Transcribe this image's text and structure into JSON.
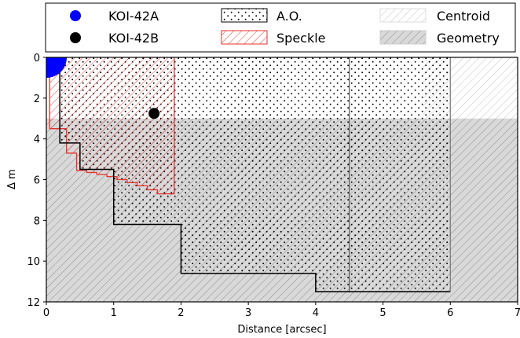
{
  "chart_data": {
    "type": "area",
    "xlabel": "Distance [arcsec]",
    "ylabel": "Δ m",
    "xlim": [
      0,
      7
    ],
    "ylim": [
      12,
      0
    ],
    "y_inverted": true,
    "xticks": [
      0,
      1,
      2,
      3,
      4,
      5,
      6,
      7
    ],
    "yticks": [
      0,
      2,
      4,
      6,
      8,
      10,
      12
    ],
    "grid": false,
    "legend_placement": "top",
    "legend": [
      {
        "label": "KOI-42A",
        "kind": "marker",
        "color": "#0000ff"
      },
      {
        "label": "A.O.",
        "kind": "dots",
        "edge": "#000000"
      },
      {
        "label": "Centroid",
        "kind": "light-hatch",
        "edge": "#bbbbbb"
      },
      {
        "label": "KOI-42B",
        "kind": "marker",
        "color": "#000000"
      },
      {
        "label": "Speckle",
        "kind": "red-hatch",
        "edge": "#e8302a"
      },
      {
        "label": "Geometry",
        "kind": "gray-hatch",
        "edge": "#888888"
      }
    ],
    "points": [
      {
        "name": "KOI-42A",
        "x": 0.0,
        "y": 0.0,
        "color": "#0000ff"
      },
      {
        "name": "KOI-42B",
        "x": 1.6,
        "y": 2.75,
        "color": "#000000"
      }
    ],
    "regions": {
      "geometry_dm": 3.0,
      "centroid_x": [
        5.6,
        7.0
      ],
      "ao_x": [
        0.0,
        6.0
      ],
      "ao_inner_x": 4.5
    },
    "series": [
      {
        "name": "A.O.",
        "color": "#000000",
        "x": [
          0.2,
          0.2,
          0.5,
          0.5,
          1.0,
          1.0,
          2.0,
          2.0,
          4.0,
          4.0,
          6.0
        ],
        "y": [
          0.0,
          4.2,
          4.2,
          5.5,
          5.5,
          8.2,
          8.2,
          10.6,
          10.6,
          11.5,
          11.5
        ]
      },
      {
        "name": "Speckle",
        "color": "#e8302a",
        "x": [
          0.05,
          0.05,
          0.3,
          0.3,
          0.45,
          0.45,
          0.6,
          0.6,
          0.75,
          0.75,
          0.9,
          0.9,
          1.05,
          1.05,
          1.2,
          1.2,
          1.35,
          1.35,
          1.5,
          1.5,
          1.65,
          1.65,
          1.9,
          1.9
        ],
        "y": [
          0.0,
          3.5,
          3.5,
          4.7,
          4.7,
          5.55,
          5.55,
          5.65,
          5.65,
          5.75,
          5.75,
          5.85,
          5.85,
          6.0,
          6.0,
          6.15,
          6.15,
          6.3,
          6.3,
          6.5,
          6.5,
          6.7,
          6.7,
          0.0
        ]
      }
    ]
  }
}
